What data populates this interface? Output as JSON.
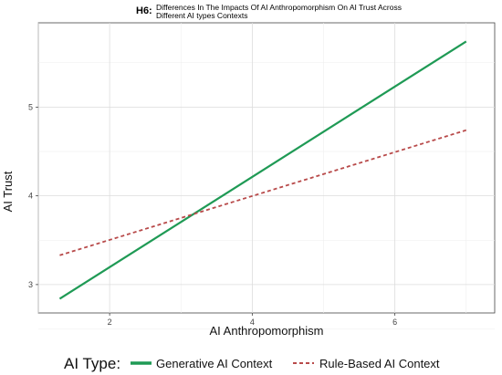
{
  "chart_data": {
    "type": "line",
    "title_prefix": "H6:",
    "title_line1": "Differences In The Impacts Of AI Anthropomorphism On AI Trust Across",
    "title_line2": "Different AI types Contexts",
    "xlabel": "AI Anthropomorphism",
    "ylabel": "AI Trust",
    "xlim": [
      1.0,
      7.4
    ],
    "ylim": [
      2.68,
      5.95
    ],
    "x_ticks": [
      2,
      4,
      6
    ],
    "y_ticks": [
      3,
      4,
      5
    ],
    "grid": true,
    "legend_title": "AI Type:",
    "legend_position": "bottom",
    "series": [
      {
        "name": "Generative AI Context",
        "color": "#1f9a55",
        "style": "solid",
        "x": [
          1.3,
          7.0
        ],
        "y": [
          2.84,
          5.74
        ]
      },
      {
        "name": "Rule-Based AI Context",
        "color": "#b84a4a",
        "style": "dashed",
        "x": [
          1.3,
          7.0
        ],
        "y": [
          3.33,
          4.74
        ]
      }
    ]
  }
}
